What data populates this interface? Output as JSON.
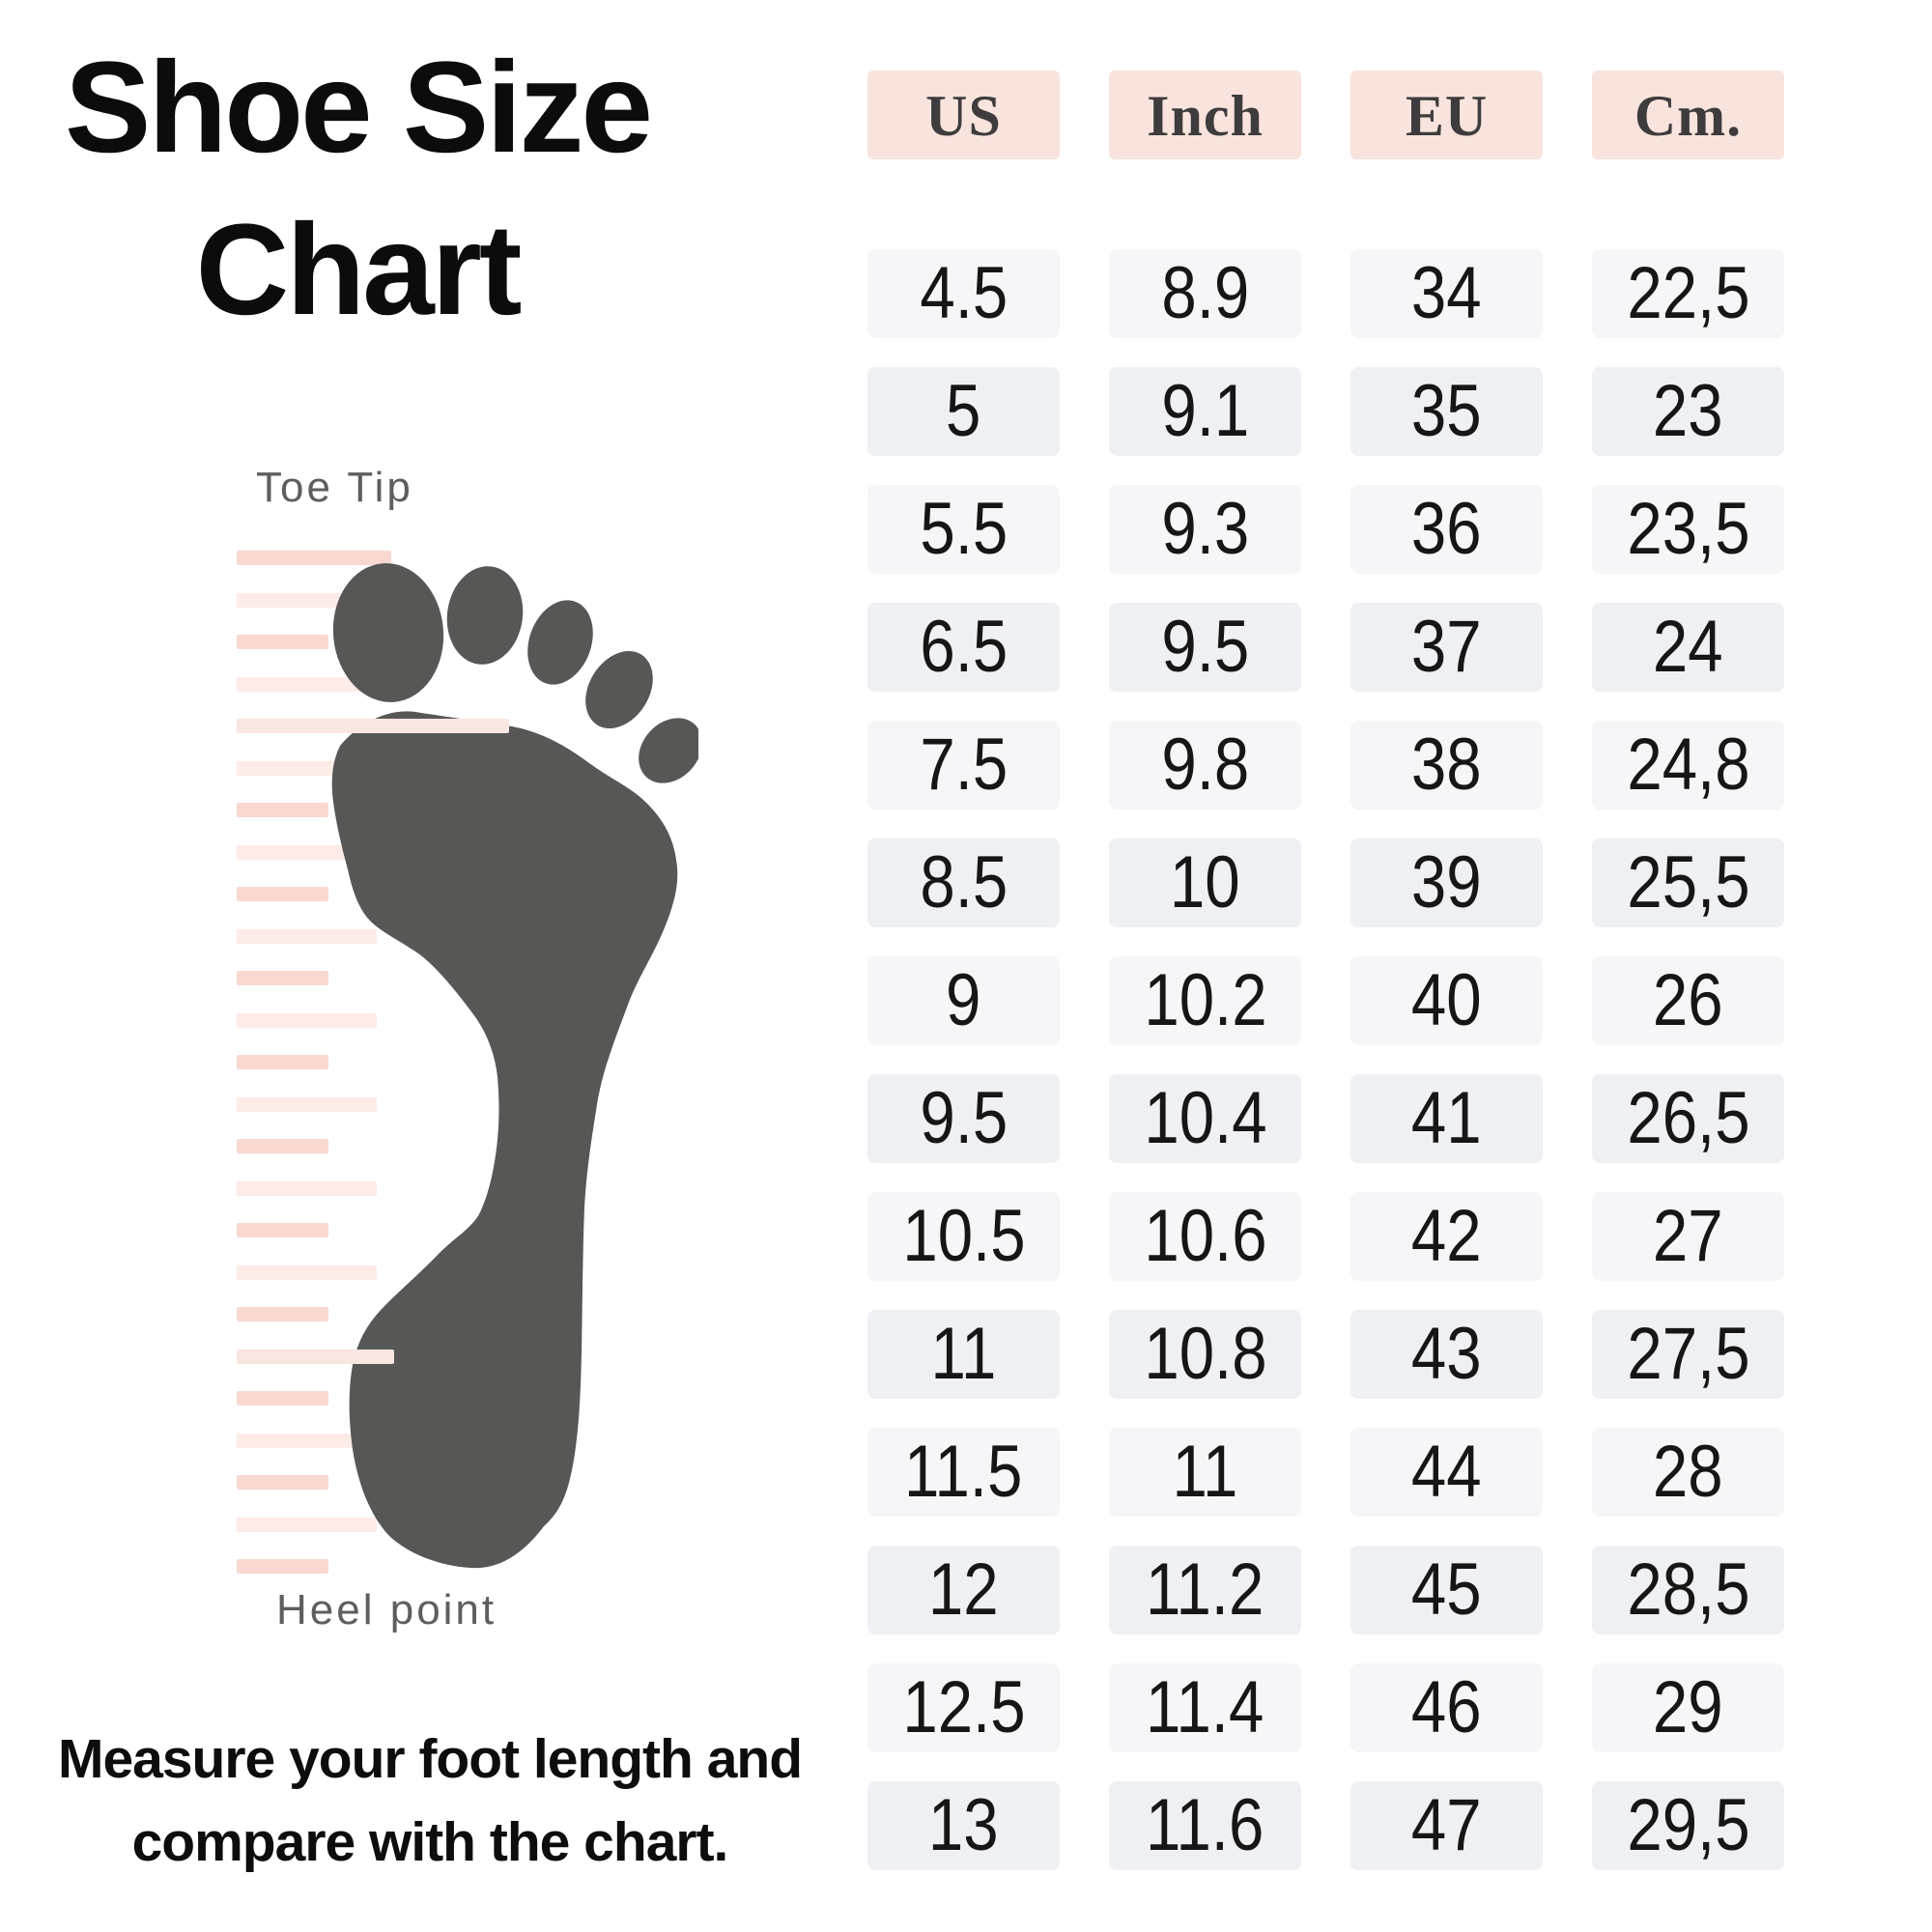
{
  "title": {
    "line1": "Shoe Size",
    "line2": "Chart"
  },
  "diagram": {
    "toe_label": "Toe Tip",
    "heel_label": "Heel point"
  },
  "footer": {
    "line1": "Measure your foot length and",
    "line2": "compare with the chart."
  },
  "colors": {
    "header_bg": "#f9e4dd",
    "row_odd": "#f6f6f8",
    "row_even": "#eef0f3",
    "foot": "#575756",
    "ruler_pink": "#f9d8d2",
    "ruler_pale": "#fcebe6",
    "ruler_marker": "#f8e6e1",
    "title_text": "#0c0c0c",
    "label_text": "#5f5d5d"
  },
  "chart_data": {
    "type": "table",
    "title": "Shoe Size Chart",
    "columns": [
      "US",
      "Inch",
      "EU",
      "Cm."
    ],
    "rows": [
      [
        "4.5",
        "8.9",
        "34",
        "22,5"
      ],
      [
        "5",
        "9.1",
        "35",
        "23"
      ],
      [
        "5.5",
        "9.3",
        "36",
        "23,5"
      ],
      [
        "6.5",
        "9.5",
        "37",
        "24"
      ],
      [
        "7.5",
        "9.8",
        "38",
        "24,8"
      ],
      [
        "8.5",
        "10",
        "39",
        "25,5"
      ],
      [
        "9",
        "10.2",
        "40",
        "26"
      ],
      [
        "9.5",
        "10.4",
        "41",
        "26,5"
      ],
      [
        "10.5",
        "10.6",
        "42",
        "27"
      ],
      [
        "11",
        "10.8",
        "43",
        "27,5"
      ],
      [
        "11.5",
        "11",
        "44",
        "28"
      ],
      [
        "12",
        "11.2",
        "45",
        "28,5"
      ],
      [
        "12.5",
        "11.4",
        "46",
        "29"
      ],
      [
        "13",
        "11.6",
        "47",
        "29,5"
      ]
    ],
    "note": "Measure your foot length and compare with the chart.",
    "annotations": [
      "Toe Tip",
      "Heel point"
    ]
  }
}
